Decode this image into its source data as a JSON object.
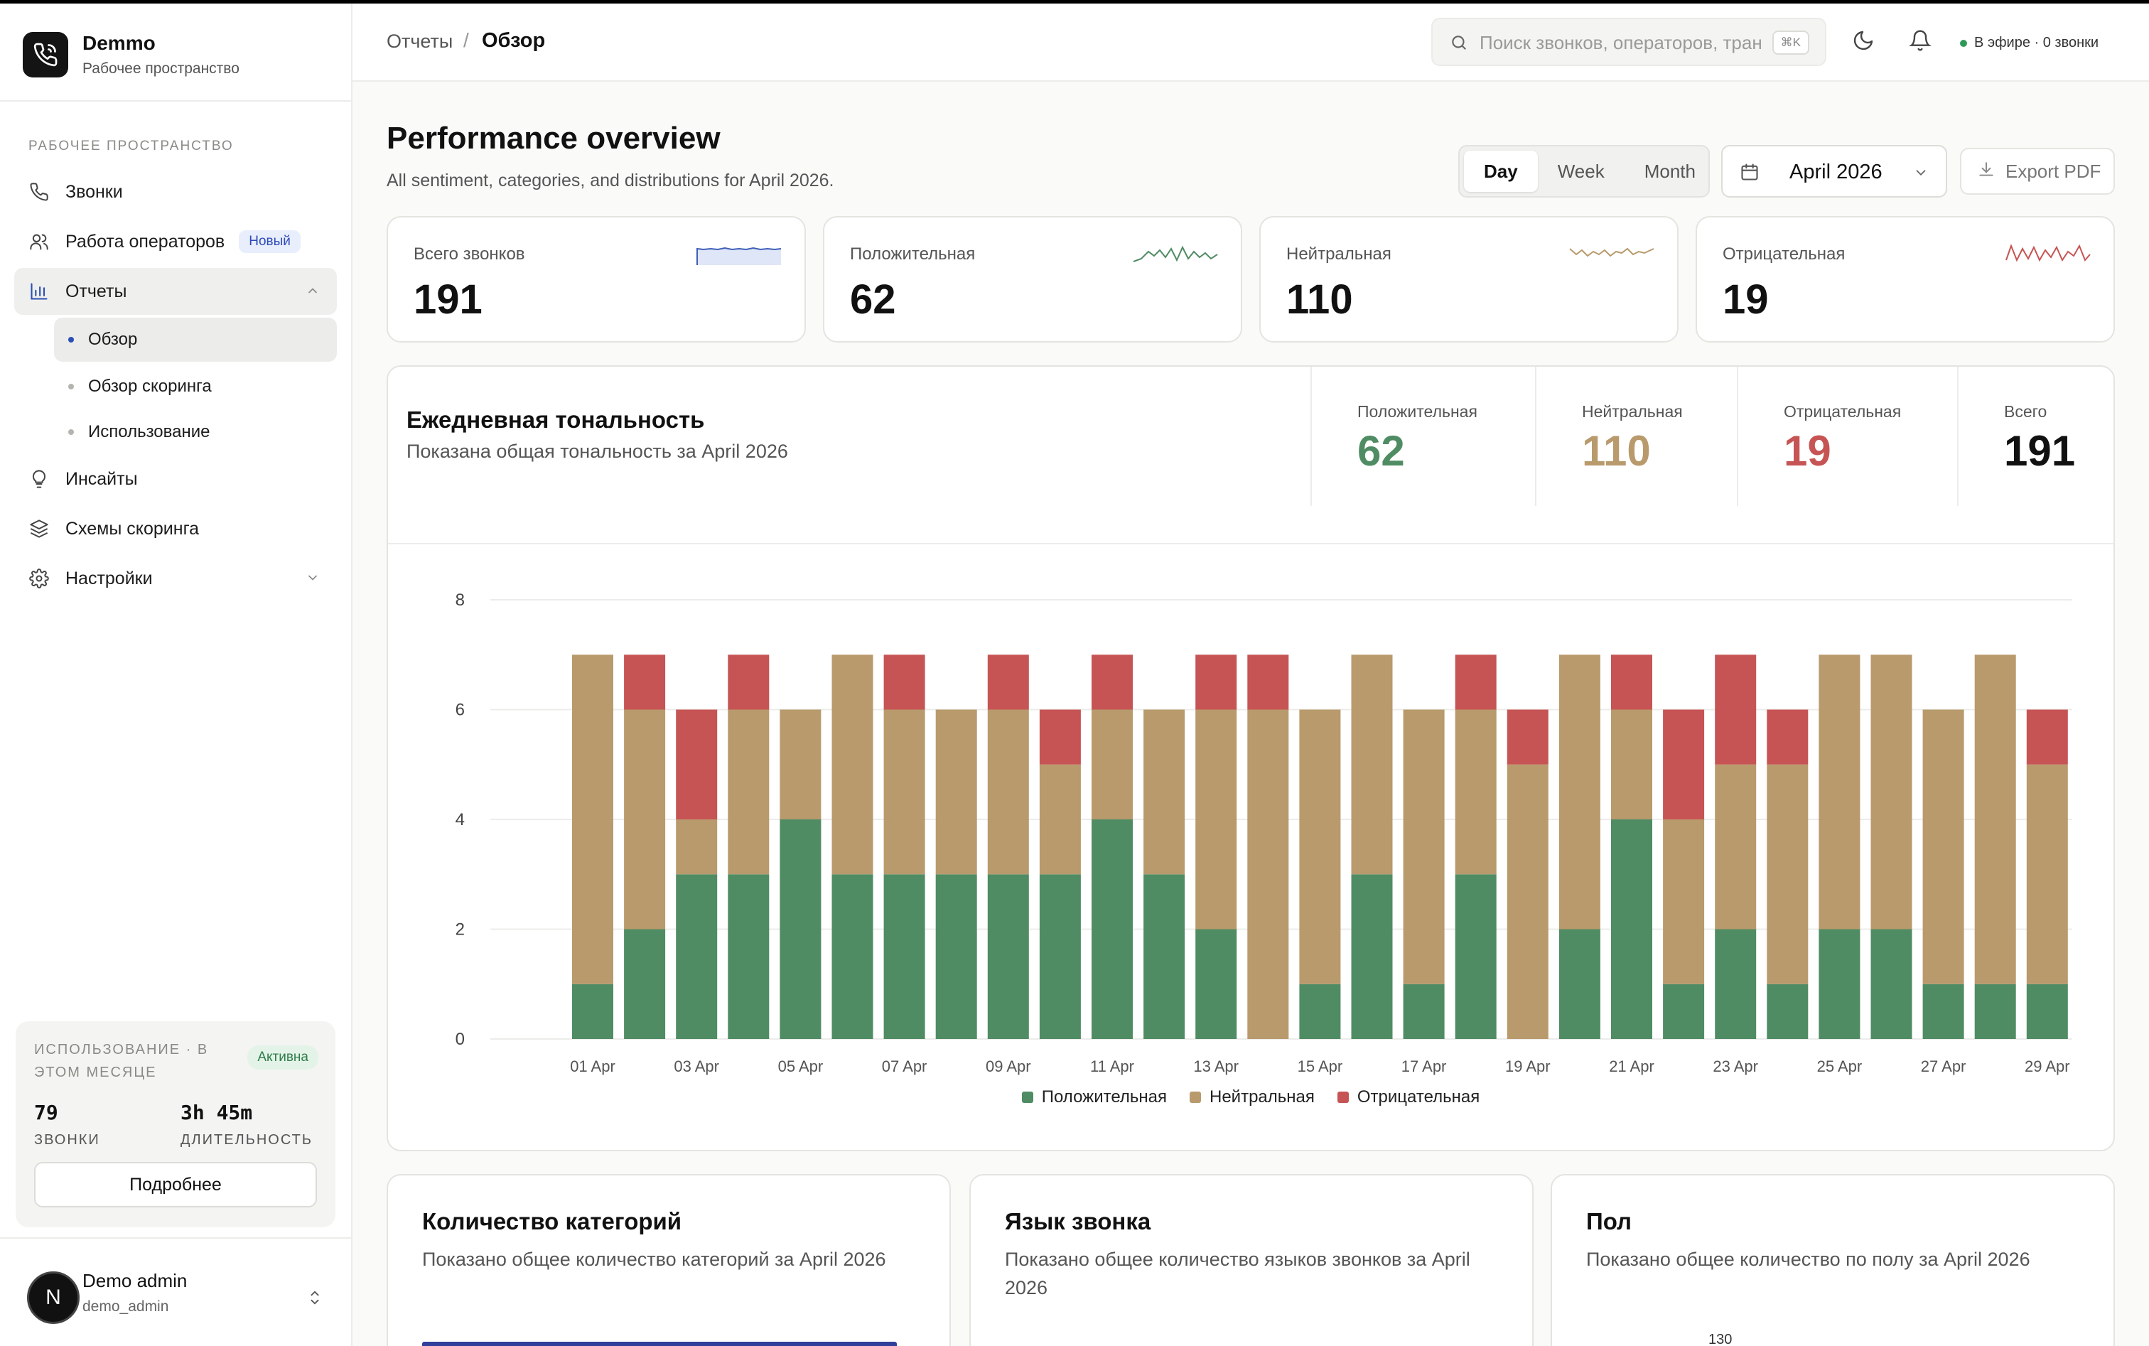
{
  "brand": {
    "name": "Demmo",
    "subtitle": "Рабочее пространство"
  },
  "sidebar": {
    "section_label": "РАБОЧЕЕ ПРОСТРАНСТВО",
    "items": [
      {
        "label": "Звонки",
        "icon": "phone-icon"
      },
      {
        "label": "Работа операторов",
        "icon": "users-icon",
        "badge": "Новый"
      },
      {
        "label": "Отчеты",
        "icon": "bar-chart-icon",
        "expanded": true,
        "children": [
          {
            "label": "Обзор",
            "active": true
          },
          {
            "label": "Обзор скоринга"
          },
          {
            "label": "Использование"
          }
        ]
      },
      {
        "label": "Инсайты",
        "icon": "lightbulb-icon"
      },
      {
        "label": "Схемы скоринга",
        "icon": "layers-icon"
      },
      {
        "label": "Настройки",
        "icon": "gear-icon"
      }
    ]
  },
  "usage": {
    "title": "ИСПОЛЬЗОВАНИЕ · В ЭТОМ МЕСЯЦЕ",
    "status": "Активна",
    "calls_value": "79",
    "calls_label": "ЗВОНКИ",
    "duration_value": "3h 45m",
    "duration_label": "ДЛИТЕЛЬНОСТЬ",
    "button": "Подробнее"
  },
  "profile": {
    "initial": "N",
    "name": "Demo admin",
    "username": "demo_admin"
  },
  "header": {
    "breadcrumb_parent": "Отчеты",
    "breadcrumb_sep": "/",
    "breadcrumb_current": "Обзор",
    "search_placeholder": "Поиск звонков, операторов, тран",
    "search_shortcut": "⌘K",
    "live_status": "В эфире · 0 звонки"
  },
  "page": {
    "title": "Performance overview",
    "subtitle": "All sentiment, categories, and distributions for April 2026.",
    "periods": [
      "Day",
      "Week",
      "Month"
    ],
    "active_period": "Day",
    "month": "April 2026",
    "export_label": "Export PDF"
  },
  "colors": {
    "positive": "#4f8c63",
    "neutral": "#b89a6c",
    "negative": "#c65454",
    "total_sparkline": "#3f5fb8"
  },
  "kpis": [
    {
      "label": "Всего звонков",
      "value": "191",
      "sparkline_color": "#3f5fb8"
    },
    {
      "label": "Положительная",
      "value": "62",
      "sparkline_color": "#4f8c63"
    },
    {
      "label": "Нейтральная",
      "value": "110",
      "sparkline_color": "#b89a6c"
    },
    {
      "label": "Отрицательная",
      "value": "19",
      "sparkline_color": "#c65454"
    }
  ],
  "daily": {
    "title": "Ежедневная тональность",
    "subtitle": "Показана общая тональность за April 2026",
    "stats": [
      {
        "label": "Положительная",
        "value": "62",
        "color": "#4f8c63"
      },
      {
        "label": "Нейтральная",
        "value": "110",
        "color": "#b89a6c"
      },
      {
        "label": "Отрицательная",
        "value": "19",
        "color": "#c65454"
      },
      {
        "label": "Всего",
        "value": "191",
        "color": "#111111"
      }
    ]
  },
  "chart_data": {
    "type": "bar",
    "stacked": true,
    "categories": [
      "01 Apr",
      "02 Apr",
      "03 Apr",
      "04 Apr",
      "05 Apr",
      "06 Apr",
      "07 Apr",
      "08 Apr",
      "09 Apr",
      "10 Apr",
      "11 Apr",
      "12 Apr",
      "13 Apr",
      "14 Apr",
      "15 Apr",
      "16 Apr",
      "17 Apr",
      "18 Apr",
      "19 Apr",
      "20 Apr",
      "21 Apr",
      "22 Apr",
      "23 Apr",
      "24 Apr",
      "25 Apr",
      "26 Apr",
      "27 Apr",
      "28 Apr",
      "29 Apr"
    ],
    "tick_labels": [
      "01 Apr",
      "03 Apr",
      "05 Apr",
      "07 Apr",
      "09 Apr",
      "11 Apr",
      "13 Apr",
      "15 Apr",
      "17 Apr",
      "19 Apr",
      "21 Apr",
      "23 Apr",
      "25 Apr",
      "27 Apr",
      "29 Apr"
    ],
    "series": [
      {
        "name": "Положительная",
        "color": "#4f8c63",
        "values": [
          1,
          2,
          3,
          3,
          4,
          3,
          3,
          3,
          3,
          3,
          4,
          3,
          2,
          0,
          1,
          3,
          1,
          3,
          0,
          2,
          4,
          1,
          2,
          1,
          2,
          2,
          1,
          1,
          1
        ]
      },
      {
        "name": "Нейтральная",
        "color": "#b89a6c",
        "values": [
          6,
          4,
          1,
          3,
          2,
          4,
          3,
          3,
          3,
          2,
          2,
          3,
          4,
          6,
          5,
          4,
          5,
          3,
          5,
          5,
          2,
          3,
          3,
          4,
          5,
          5,
          5,
          6,
          4
        ]
      },
      {
        "name": "Отрицательная",
        "color": "#c65454",
        "values": [
          0,
          1,
          2,
          1,
          0,
          0,
          1,
          0,
          1,
          1,
          1,
          0,
          1,
          1,
          0,
          0,
          0,
          1,
          1,
          0,
          1,
          2,
          2,
          1,
          0,
          0,
          0,
          0,
          1
        ]
      }
    ],
    "yticks": [
      0,
      2,
      4,
      6,
      8
    ],
    "ylim": [
      0,
      8
    ],
    "grid": true,
    "legend": "bottom-center"
  },
  "bottom_cards": [
    {
      "title": "Количество категорий",
      "subtitle": "Показано общее количество категорий за April 2026"
    },
    {
      "title": "Язык звонка",
      "subtitle": "Показано общее количество языков звонков за April 2026"
    },
    {
      "title": "Пол",
      "subtitle": "Показано общее количество по полу за April 2026",
      "peek_tick": "130"
    }
  ]
}
